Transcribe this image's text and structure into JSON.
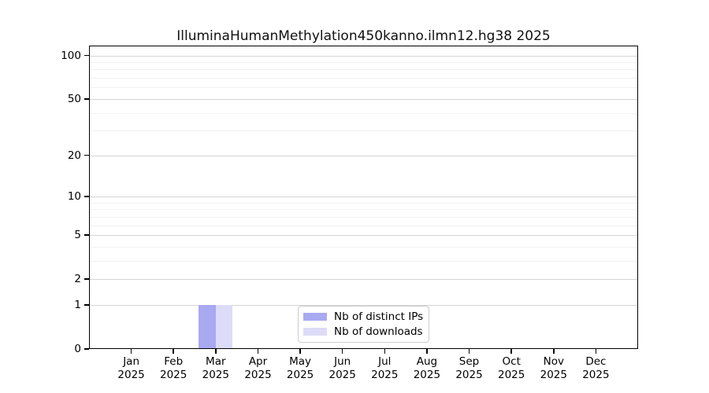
{
  "chart_data": {
    "type": "bar",
    "title": "IlluminaHumanMethylation450kanno.ilmn12.hg38 2025",
    "categories": [
      "Jan 2025",
      "Feb 2025",
      "Mar 2025",
      "Apr 2025",
      "May 2025",
      "Jun 2025",
      "Jul 2025",
      "Aug 2025",
      "Sep 2025",
      "Oct 2025",
      "Nov 2025",
      "Dec 2025"
    ],
    "series": [
      {
        "name": "Nb of distinct IPs",
        "color": "#a9a9f2",
        "values": [
          0,
          0,
          1,
          0,
          0,
          0,
          0,
          0,
          0,
          0,
          0,
          0
        ]
      },
      {
        "name": "Nb of downloads",
        "color": "#dcdcf8",
        "values": [
          0,
          0,
          1,
          0,
          0,
          0,
          0,
          0,
          0,
          0,
          0,
          0
        ]
      }
    ],
    "xlabel": "",
    "ylabel": "",
    "yscale": "log1p",
    "ylim": [
      0,
      117
    ],
    "y_major_ticks": [
      0,
      1,
      2,
      5,
      10,
      20,
      50,
      100
    ],
    "y_minor_ticks": [
      3,
      4,
      6,
      7,
      8,
      9,
      30,
      40,
      60,
      70,
      80,
      90
    ],
    "grid": true,
    "legend_position": "inside-bottom-center"
  },
  "colors": {
    "background": "#ffffff",
    "axis": "#000000",
    "grid_major": "#d5d5d5",
    "grid_minor": "#f2f2f2",
    "legend_border": "#cccccc",
    "bar_distinct_ips": "#a9a9f2",
    "bar_downloads": "#dcdcf8"
  }
}
